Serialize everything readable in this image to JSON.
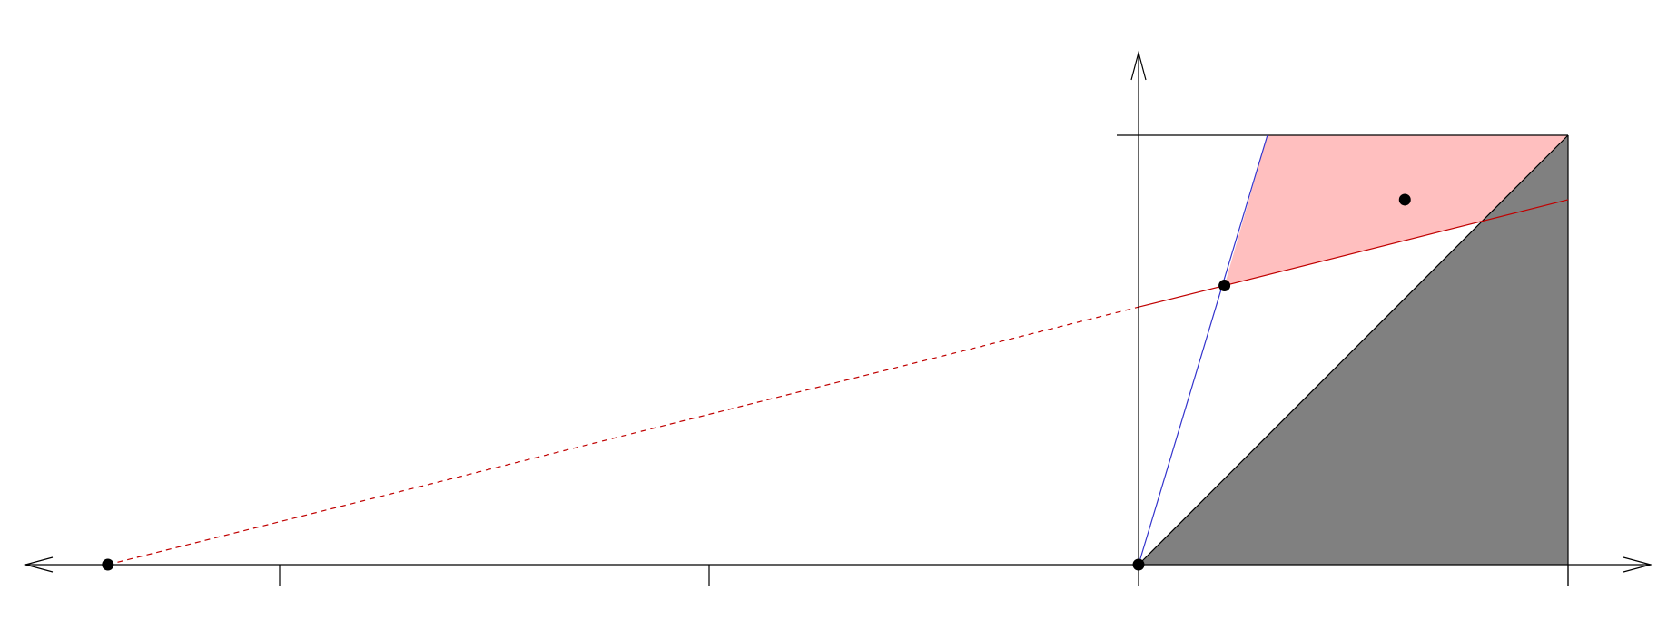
{
  "diagram": {
    "description_text": "",
    "colors": {
      "axis": "#000000",
      "gray_region": "#808080",
      "pink_region": "#ffbfbf",
      "red_line": "#c00000",
      "blue_line": "#3333cc",
      "point": "#000000"
    },
    "domain": {
      "x_min": -2.4,
      "x_max": 1.2,
      "y_min": 0,
      "y_max": 1.2
    },
    "x_ticks": [
      -2,
      -1,
      1
    ],
    "y_ticks": [
      1
    ],
    "square": [
      [
        0,
        0
      ],
      [
        1,
        0
      ],
      [
        1,
        1
      ],
      [
        0,
        1
      ]
    ],
    "gray_triangle": [
      [
        0,
        0
      ],
      [
        1,
        0
      ],
      [
        1,
        1
      ]
    ],
    "pink_region": [
      [
        0.3,
        1
      ],
      [
        1,
        1
      ],
      [
        0.8,
        0.8
      ],
      [
        0.2,
        0.65
      ]
    ],
    "red_line": {
      "from": [
        -2.4,
        0
      ],
      "to": [
        1,
        0.85
      ],
      "dashed_until_x": 0
    },
    "blue_line": {
      "from": [
        0,
        0
      ],
      "to": [
        0.3,
        1
      ]
    },
    "points": [
      {
        "name": "far-left-point",
        "x": -2.4,
        "y": 0
      },
      {
        "name": "origin-point",
        "x": 0,
        "y": 0
      },
      {
        "name": "intersection-point",
        "x": 0.2,
        "y": 0.65
      },
      {
        "name": "interior-point",
        "x": 0.62,
        "y": 0.85
      }
    ]
  }
}
